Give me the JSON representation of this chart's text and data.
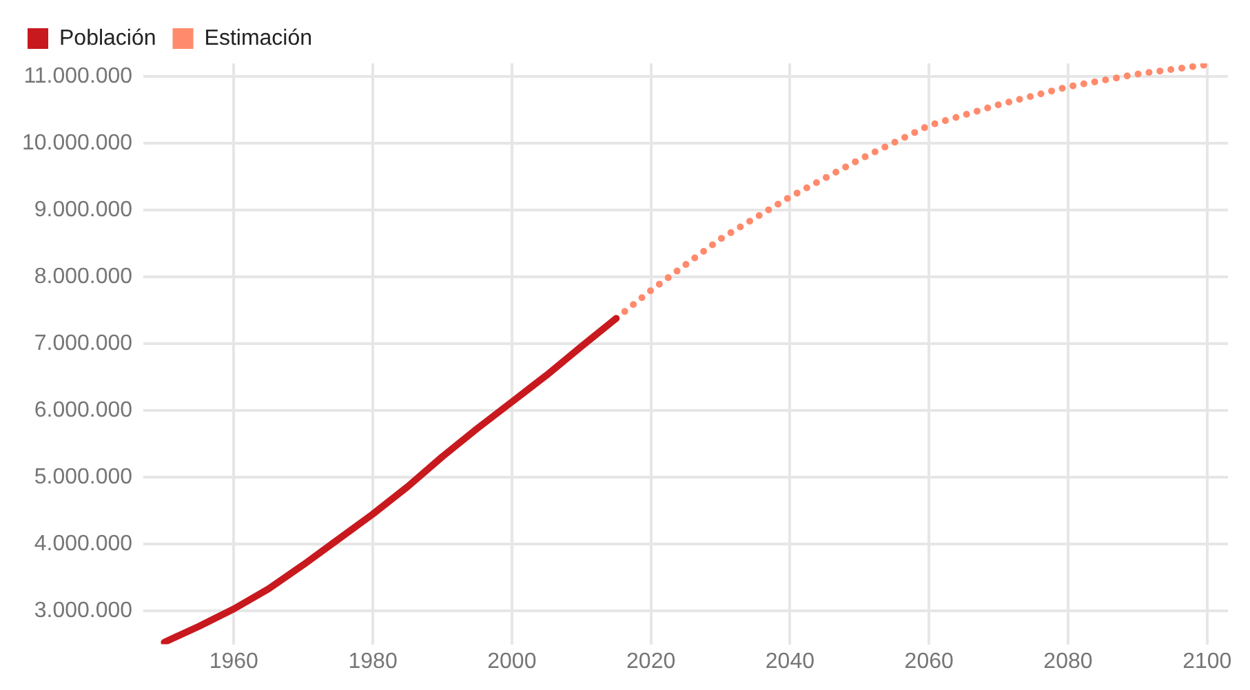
{
  "chart_data": {
    "type": "line",
    "legend": "top left",
    "grid": true,
    "line_style": "solid",
    "xlim": [
      1947,
      2103
    ],
    "xticks": [
      1960,
      1980,
      2000,
      2020,
      2040,
      2060,
      2080,
      2100
    ],
    "ylim": [
      2500000,
      11200000
    ],
    "yticks": [
      {
        "value": 3000000,
        "label": "3.000.000"
      },
      {
        "value": 4000000,
        "label": "4.000.000"
      },
      {
        "value": 5000000,
        "label": "5.000.000"
      },
      {
        "value": 6000000,
        "label": "6.000.000"
      },
      {
        "value": 7000000,
        "label": "7.000.000"
      },
      {
        "value": 8000000,
        "label": "8.000.000"
      },
      {
        "value": 9000000,
        "label": "9.000.000"
      },
      {
        "value": 10000000,
        "label": "10.000.000"
      },
      {
        "value": 11000000,
        "label": "11.000.000"
      }
    ],
    "series": [
      {
        "name": "Población",
        "color": "#c8191e",
        "x": [
          1950,
          1955,
          1960,
          1965,
          1970,
          1975,
          1980,
          1985,
          1990,
          1995,
          2000,
          2005,
          2010,
          2015
        ],
        "values": [
          2530000,
          2770000,
          3030000,
          3330000,
          3690000,
          4070000,
          4450000,
          4860000,
          5310000,
          5730000,
          6130000,
          6530000,
          6960000,
          7380000
        ]
      },
      {
        "name": "Estimación",
        "color": "#ff8a6c",
        "line_style": "dotted",
        "x": [
          2015,
          2020,
          2030,
          2040,
          2050,
          2060,
          2070,
          2080,
          2090,
          2100
        ],
        "values": [
          7380000,
          7800000,
          8570000,
          9200000,
          9760000,
          10270000,
          10580000,
          10850000,
          11040000,
          11180000
        ]
      }
    ]
  }
}
